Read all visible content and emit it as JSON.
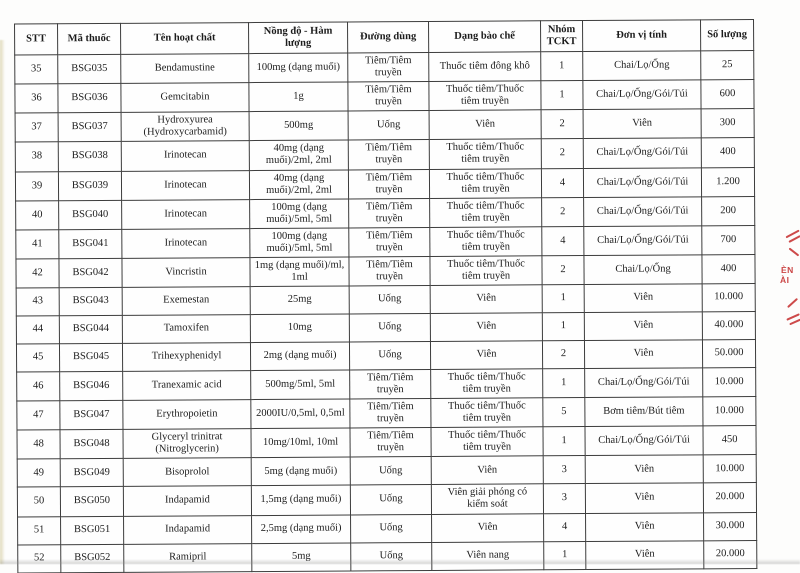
{
  "table": {
    "headers": [
      "STT",
      "Mã thuốc",
      "Tên hoạt chất",
      "Nồng độ - Hàm lượng",
      "Đường dùng",
      "Dạng bào chế",
      "Nhóm TCKT",
      "Đơn vị tính",
      "Số lượng"
    ],
    "rows": [
      [
        "35",
        "BSG035",
        "Bendamustine",
        "100mg (dạng muối)",
        "Tiêm/Tiêm truyền",
        "Thuốc tiêm đông khô",
        "1",
        "Chai/Lọ/Ống",
        "25"
      ],
      [
        "36",
        "BSG036",
        "Gemcitabin",
        "1g",
        "Tiêm/Tiêm truyền",
        "Thuốc tiêm/Thuốc tiêm truyền",
        "1",
        "Chai/Lọ/Ống/Gói/Túi",
        "600"
      ],
      [
        "37",
        "BSG037",
        "Hydroxyurea (Hydroxycarbamid)",
        "500mg",
        "Uống",
        "Viên",
        "2",
        "Viên",
        "300"
      ],
      [
        "38",
        "BSG038",
        "Irinotecan",
        "40mg (dạng muối)/2ml, 2ml",
        "Tiêm/Tiêm truyền",
        "Thuốc tiêm/Thuốc tiêm truyền",
        "2",
        "Chai/Lọ/Ống/Gói/Túi",
        "400"
      ],
      [
        "39",
        "BSG039",
        "Irinotecan",
        "40mg (dạng muối)/2ml, 2ml",
        "Tiêm/Tiêm truyền",
        "Thuốc tiêm/Thuốc tiêm truyền",
        "4",
        "Chai/Lọ/Ống/Gói/Túi",
        "1.200"
      ],
      [
        "40",
        "BSG040",
        "Irinotecan",
        "100mg (dạng muối)/5ml, 5ml",
        "Tiêm/Tiêm truyền",
        "Thuốc tiêm/Thuốc tiêm truyền",
        "2",
        "Chai/Lọ/Ống/Gói/Túi",
        "200"
      ],
      [
        "41",
        "BSG041",
        "Irinotecan",
        "100mg (dạng muối)/5ml, 5ml",
        "Tiêm/Tiêm truyền",
        "Thuốc tiêm/Thuốc tiêm truyền",
        "4",
        "Chai/Lọ/Ống/Gói/Túi",
        "700"
      ],
      [
        "42",
        "BSG042",
        "Vincristin",
        "1mg (dạng muối)/ml, 1ml",
        "Tiêm/Tiêm truyền",
        "Thuốc tiêm/Thuốc tiêm truyền",
        "2",
        "Chai/Lọ/Ống",
        "400"
      ],
      [
        "43",
        "BSG043",
        "Exemestan",
        "25mg",
        "Uống",
        "Viên",
        "1",
        "Viên",
        "10.000"
      ],
      [
        "44",
        "BSG044",
        "Tamoxifen",
        "10mg",
        "Uống",
        "Viên",
        "1",
        "Viên",
        "40.000"
      ],
      [
        "45",
        "BSG045",
        "Trihexyphenidyl",
        "2mg (dạng muối)",
        "Uống",
        "Viên",
        "2",
        "Viên",
        "50.000"
      ],
      [
        "46",
        "BSG046",
        "Tranexamic acid",
        "500mg/5ml, 5ml",
        "Tiêm/Tiêm truyền",
        "Thuốc tiêm/Thuốc tiêm truyền",
        "1",
        "Chai/Lọ/Ống/Gói/Túi",
        "10.000"
      ],
      [
        "47",
        "BSG047",
        "Erythropoietin",
        "2000IU/0,5ml, 0,5ml",
        "Tiêm/Tiêm truyền",
        "Thuốc tiêm/Thuốc tiêm truyền",
        "5",
        "Bơm tiêm/Bút tiêm",
        "10.000"
      ],
      [
        "48",
        "BSG048",
        "Glyceryl trinitrat (Nitroglycerin)",
        "10mg/10ml, 10ml",
        "Tiêm/Tiêm truyền",
        "Thuốc tiêm/Thuốc tiêm truyền",
        "1",
        "Chai/Lọ/Ống/Gói/Túi",
        "450"
      ],
      [
        "49",
        "BSG049",
        "Bisoprolol",
        "5mg (dạng muối)",
        "Uống",
        "Viên",
        "3",
        "Viên",
        "10.000"
      ],
      [
        "50",
        "BSG050",
        "Indapamid",
        "1,5mg (dạng muối)",
        "Uống",
        "Viên giải phóng có kiểm soát",
        "3",
        "Viên",
        "20.000"
      ],
      [
        "51",
        "BSG051",
        "Indapamid",
        "2,5mg (dạng muối)",
        "Uống",
        "Viên",
        "4",
        "Viên",
        "30.000"
      ],
      [
        "52",
        "BSG052",
        "Ramipril",
        "5mg",
        "Uống",
        "Viên nang",
        "1",
        "Viên",
        "20.000"
      ]
    ]
  },
  "stamp": {
    "color": "#cb4646",
    "text_line1": "ÈN",
    "text_line2": "ÀI"
  }
}
